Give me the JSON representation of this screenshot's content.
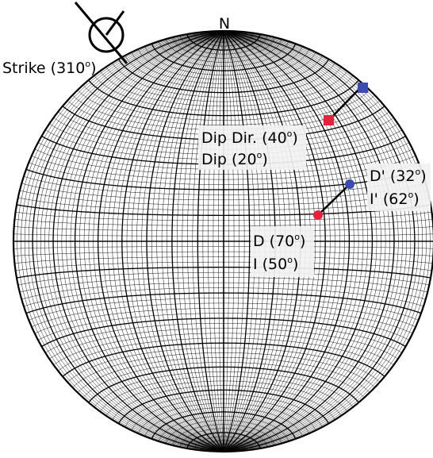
{
  "diagram": {
    "north_label": "N",
    "strike_label": "Strike (310",
    "strike_unit": "o",
    "strike_close": ")",
    "dip_dir_label": "Dip Dir. (40",
    "dip_dir_unit": "o",
    "dip_dir_close": ")",
    "dip_label": "Dip (20",
    "dip_unit": "o",
    "dip_close": ")",
    "d_prime_label": "D' (32",
    "d_prime_unit": "o",
    "d_prime_close": ")",
    "i_prime_label": "I' (62",
    "i_prime_unit": "o",
    "i_prime_close": ")",
    "d_label": "D (70",
    "d_unit": "o",
    "d_close": ")",
    "i_label": "I (50",
    "i_unit": "o",
    "i_close": ")"
  },
  "colors": {
    "red_marker": "#e8203c",
    "blue_marker": "#3a4cb0",
    "net_line": "#000000",
    "label_bg": "#f2f2f2"
  }
}
